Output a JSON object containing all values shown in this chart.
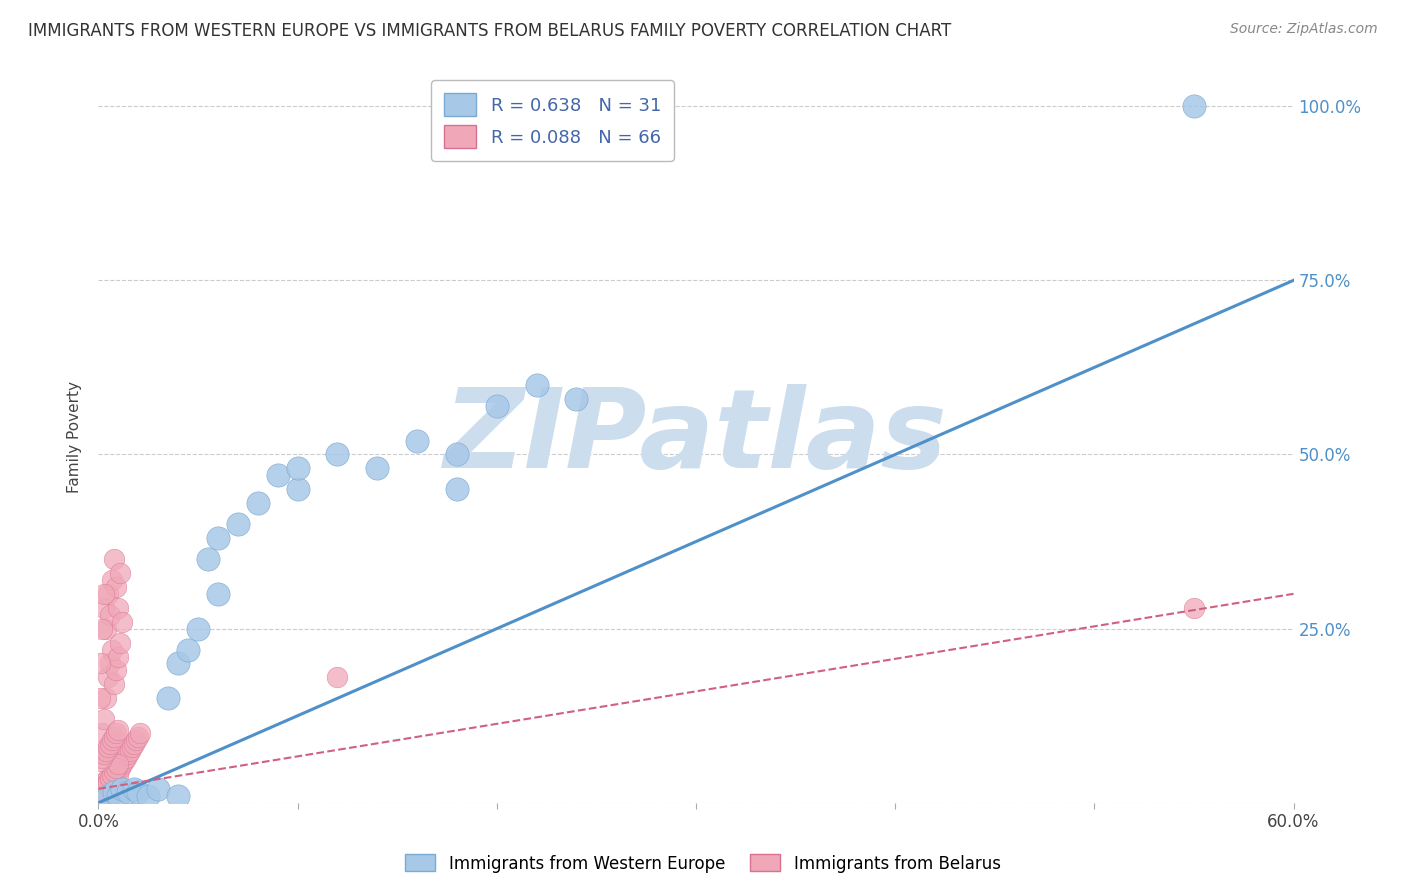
{
  "title": "IMMIGRANTS FROM WESTERN EUROPE VS IMMIGRANTS FROM BELARUS FAMILY POVERTY CORRELATION CHART",
  "source": "Source: ZipAtlas.com",
  "ylabel": "Family Poverty",
  "xlim": [
    0.0,
    0.6
  ],
  "ylim": [
    0.0,
    1.05
  ],
  "xticks": [
    0.0,
    0.1,
    0.2,
    0.3,
    0.4,
    0.5,
    0.6
  ],
  "ytick_positions": [
    0.0,
    0.25,
    0.5,
    0.75,
    1.0
  ],
  "blue_R": 0.638,
  "blue_N": 31,
  "pink_R": 0.088,
  "pink_N": 66,
  "blue_color": "#a8c8e8",
  "pink_color": "#f0a8b8",
  "blue_edge_color": "#7aaad0",
  "pink_edge_color": "#d87090",
  "blue_line_color": "#5090c8",
  "pink_line_color": "#d06080",
  "watermark": "ZIPatlas",
  "watermark_color": "#ccdded",
  "legend_label_blue": "Immigrants from Western Europe",
  "legend_label_pink": "Immigrants from Belarus",
  "blue_line_x0": 0.0,
  "blue_line_y0": 0.0,
  "blue_line_x1": 0.6,
  "blue_line_y1": 0.75,
  "pink_line_x0": 0.0,
  "pink_line_y0": 0.02,
  "pink_line_x1": 0.6,
  "pink_line_y1": 0.3,
  "blue_scatter_x": [
    0.005,
    0.008,
    0.01,
    0.012,
    0.015,
    0.018,
    0.02,
    0.025,
    0.03,
    0.035,
    0.04,
    0.045,
    0.05,
    0.055,
    0.06,
    0.07,
    0.08,
    0.09,
    0.1,
    0.12,
    0.14,
    0.16,
    0.18,
    0.2,
    0.22,
    0.24,
    0.55,
    0.06,
    0.1,
    0.18,
    0.04
  ],
  "blue_scatter_y": [
    0.01,
    0.015,
    0.01,
    0.02,
    0.015,
    0.02,
    0.015,
    0.01,
    0.02,
    0.15,
    0.2,
    0.22,
    0.25,
    0.35,
    0.38,
    0.4,
    0.43,
    0.47,
    0.45,
    0.5,
    0.48,
    0.52,
    0.45,
    0.57,
    0.6,
    0.58,
    1.0,
    0.3,
    0.48,
    0.5,
    0.01
  ],
  "pink_scatter_x": [
    0.002,
    0.003,
    0.004,
    0.005,
    0.006,
    0.007,
    0.008,
    0.009,
    0.01,
    0.011,
    0.012,
    0.013,
    0.014,
    0.015,
    0.016,
    0.017,
    0.018,
    0.019,
    0.02,
    0.021,
    0.003,
    0.004,
    0.005,
    0.006,
    0.007,
    0.008,
    0.009,
    0.01,
    0.011,
    0.012,
    0.002,
    0.003,
    0.004,
    0.005,
    0.006,
    0.007,
    0.008,
    0.009,
    0.01,
    0.011,
    0.001,
    0.002,
    0.003,
    0.004,
    0.005,
    0.006,
    0.007,
    0.008,
    0.009,
    0.01,
    0.001,
    0.002,
    0.003,
    0.004,
    0.005,
    0.006,
    0.007,
    0.008,
    0.009,
    0.01,
    0.001,
    0.001,
    0.002,
    0.003,
    0.55,
    0.12
  ],
  "pink_scatter_y": [
    0.02,
    0.03,
    0.025,
    0.035,
    0.03,
    0.04,
    0.035,
    0.045,
    0.04,
    0.05,
    0.055,
    0.06,
    0.065,
    0.07,
    0.075,
    0.08,
    0.085,
    0.09,
    0.095,
    0.1,
    0.28,
    0.25,
    0.3,
    0.27,
    0.32,
    0.35,
    0.31,
    0.28,
    0.33,
    0.26,
    0.1,
    0.12,
    0.15,
    0.18,
    0.2,
    0.22,
    0.17,
    0.19,
    0.21,
    0.23,
    0.01,
    0.015,
    0.02,
    0.025,
    0.03,
    0.035,
    0.04,
    0.045,
    0.05,
    0.055,
    0.06,
    0.065,
    0.07,
    0.075,
    0.08,
    0.085,
    0.09,
    0.095,
    0.1,
    0.105,
    0.15,
    0.2,
    0.25,
    0.3,
    0.28,
    0.18
  ]
}
